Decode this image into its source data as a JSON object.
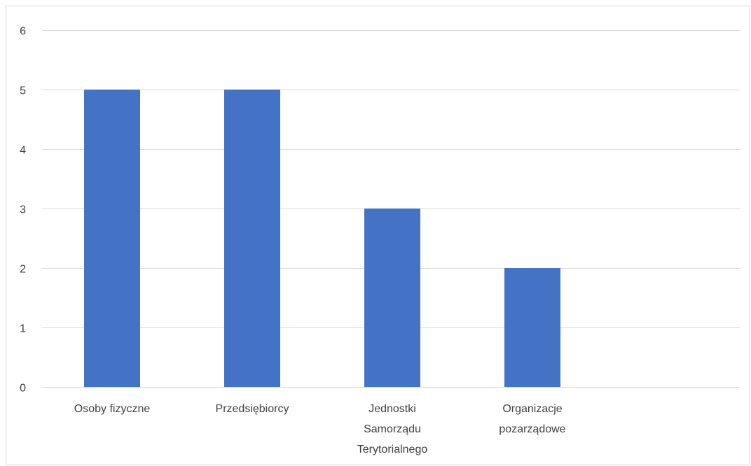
{
  "chart_data": {
    "type": "bar",
    "title": "",
    "xlabel": "",
    "ylabel": "",
    "categories": [
      [
        "Osoby fizyczne"
      ],
      [
        "Przedsiębiorcy"
      ],
      [
        "Jednostki",
        "Samorządu",
        "Terytorialnego"
      ],
      [
        "Organizacje",
        "pozarządowe"
      ]
    ],
    "values": [
      5,
      5,
      3,
      2
    ],
    "ylim": [
      0,
      6
    ],
    "yticks": [
      0,
      1,
      2,
      3,
      4,
      5,
      6
    ],
    "grid": true,
    "legend": "none",
    "colors": {
      "bar": "#4472c4",
      "grid": "#d9d9d9",
      "text": "#404040"
    }
  }
}
